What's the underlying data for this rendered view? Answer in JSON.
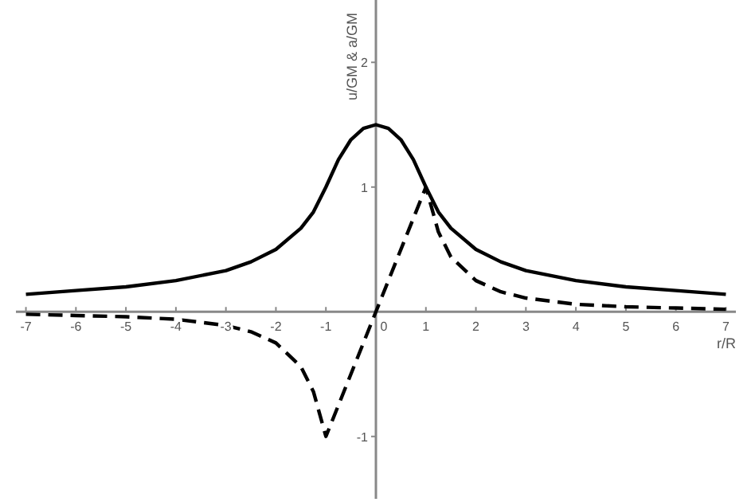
{
  "chart_data": {
    "type": "line",
    "xlabel": "r/R",
    "ylabel": "u/GM & a/GM",
    "xlim": [
      -7.2,
      7.2
    ],
    "ylim": [
      -1.5,
      2.5
    ],
    "xticks": [
      -7,
      -6,
      -5,
      -4,
      -3,
      -2,
      -1,
      0,
      1,
      2,
      3,
      4,
      5,
      6,
      7
    ],
    "yticks": [
      -1,
      1,
      2
    ],
    "grid": false,
    "marker": "none",
    "series": [
      {
        "color": "#000000",
        "line_style": "solid",
        "x": [
          -7,
          -6,
          -5,
          -4,
          -3,
          -2.5,
          -2,
          -1.5,
          -1.25,
          -1,
          -0.75,
          -0.5,
          -0.25,
          0,
          0.25,
          0.5,
          0.75,
          1,
          1.25,
          1.5,
          2,
          2.5,
          3,
          4,
          5,
          6,
          7
        ],
        "values": [
          0.14,
          0.17,
          0.2,
          0.25,
          0.33,
          0.4,
          0.5,
          0.67,
          0.8,
          1,
          1.22,
          1.38,
          1.47,
          1.5,
          1.47,
          1.38,
          1.22,
          1,
          0.8,
          0.67,
          0.5,
          0.4,
          0.33,
          0.25,
          0.2,
          0.17,
          0.14
        ]
      },
      {
        "color": "#000000",
        "line_style": "dashed",
        "x": [
          -7,
          -6,
          -5,
          -4,
          -3,
          -2.5,
          -2,
          -1.5,
          -1.25,
          -1,
          0,
          1,
          1.25,
          1.5,
          2,
          2.5,
          3,
          4,
          5,
          6,
          7
        ],
        "values": [
          -0.02,
          -0.03,
          -0.04,
          -0.06,
          -0.11,
          -0.16,
          -0.25,
          -0.44,
          -0.64,
          -1,
          0,
          1,
          0.64,
          0.44,
          0.25,
          0.16,
          0.11,
          0.06,
          0.04,
          0.03,
          0.02
        ]
      }
    ]
  }
}
